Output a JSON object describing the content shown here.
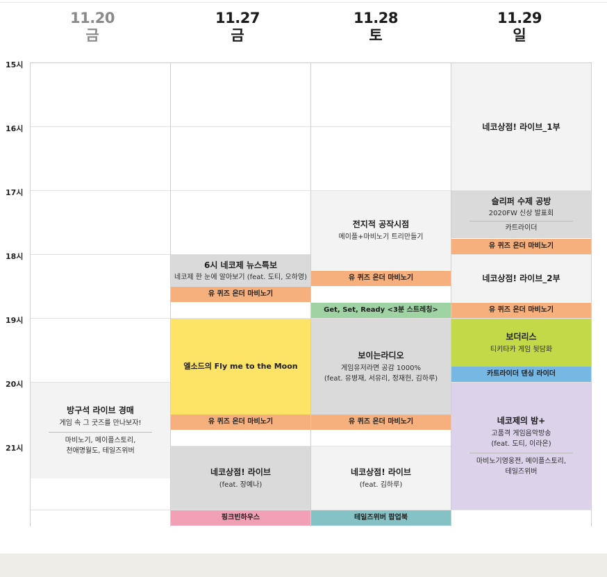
{
  "days": [
    {
      "date": "11.20",
      "dow": "금"
    },
    {
      "date": "11.27",
      "dow": "금"
    },
    {
      "date": "11.28",
      "dow": "토"
    },
    {
      "date": "11.29",
      "dow": "일"
    }
  ],
  "hours": [
    "15시",
    "16시",
    "17시",
    "18시",
    "19시",
    "20시",
    "21시"
  ],
  "events": {
    "d0_auction": {
      "title": "방구석 라이브 경매",
      "sub": "게임 속 그 굿즈를 만나보자!",
      "extra1": "마비노기, 메이플스토리,",
      "extra2": "천애명월도, 테일즈위버"
    },
    "d1_news": {
      "title": "6시 네코제 뉴스특보",
      "sub": "네코제 한 눈에 알아보기 (feat. 도티, 오하영)"
    },
    "d1_quiz1": {
      "title": "유 퀴즈 온더 마비노기"
    },
    "d1_elsword": {
      "title": "엘소드의 Fly me to the Moon"
    },
    "d1_quiz2": {
      "title": "유 퀴즈 온더 마비노기"
    },
    "d1_live": {
      "title": "네코상점! 라이브",
      "sub": "(feat. 장예나)"
    },
    "d1_pink": {
      "title": "핑크빈하우스"
    },
    "d2_craft": {
      "title": "전지적 공작시점",
      "sub": "메이플+마비노기 트리만들기"
    },
    "d2_quiz1": {
      "title": "유 퀴즈 온더 마비노기"
    },
    "d2_stretch": {
      "title": "Get, Set, Ready <3분 스트레칭>"
    },
    "d2_radio": {
      "title": "보이는라디오",
      "sub": "게임유저라면 공감 1000%",
      "sub2": "(feat. 유병재, 서유리, 정재헌, 김하루)"
    },
    "d2_quiz2": {
      "title": "유 퀴즈 온더 마비노기"
    },
    "d2_live": {
      "title": "네코상점! 라이브",
      "sub": "(feat. 김하루)"
    },
    "d2_popup": {
      "title": "테일즈위버 팝업북"
    },
    "d3_live1": {
      "title": "네코상점! 라이브_1부"
    },
    "d3_slipper": {
      "title": "슬리퍼 수제 공방",
      "sub": "2020FW 신상 발표회",
      "extra1": "카트라이더"
    },
    "d3_quiz1": {
      "title": "유 퀴즈 온더 마비노기"
    },
    "d3_live2": {
      "title": "네코상점! 라이브_2부"
    },
    "d3_quiz2": {
      "title": "유 퀴즈 온더 마비노기"
    },
    "d3_borderlis": {
      "title": "보더리스",
      "sub": "티키타카 게임 뒷담화"
    },
    "d3_dancing": {
      "title": "카트라이더 댄싱 라이더"
    },
    "d3_night": {
      "title": "네코제의 밤+",
      "sub": "고품격 게임음악방송",
      "sub2": "(feat. 도티, 이라온)",
      "extra1": "마비노기영웅전, 메이플스토리,",
      "extra2": "테일즈위버"
    }
  }
}
